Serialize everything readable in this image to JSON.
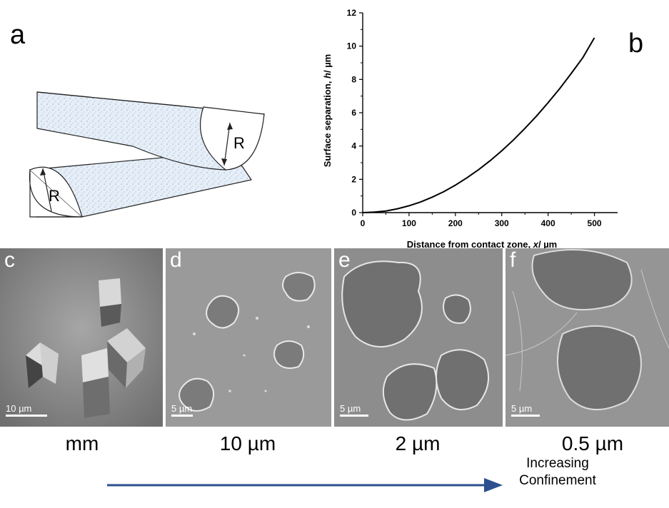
{
  "panels": {
    "a": {
      "label": "a",
      "radius_top": "R",
      "radius_bottom": "R"
    },
    "b": {
      "label": "b"
    },
    "c": {
      "label": "c",
      "scale_bar": "10 µm",
      "size_label": "mm"
    },
    "d": {
      "label": "d",
      "scale_bar": "5 µm",
      "size_label": "10 µm"
    },
    "e": {
      "label": "e",
      "scale_bar": "5 µm",
      "size_label": "2 µm"
    },
    "f": {
      "label": "f",
      "scale_bar": "5 µm",
      "size_label": "0.5 µm"
    }
  },
  "confinement": {
    "line1": "Increasing",
    "line2": "Confinement"
  },
  "colors": {
    "arrow": "#2d4f8e",
    "sem_bg": "#8f8f8f",
    "hatch": "#c9d9ea"
  },
  "chart_data": {
    "type": "line",
    "xlabel_prefix": "Distance from contact zone, ",
    "xlabel_var": "x",
    "xlabel_unit": "/ µm",
    "ylabel_prefix": "Surface separation, ",
    "ylabel_var": "h",
    "ylabel_unit": "/ µm",
    "xlim": [
      0,
      550
    ],
    "ylim": [
      0,
      12
    ],
    "xticks": [
      "0",
      "100",
      "200",
      "300",
      "400",
      "500"
    ],
    "yticks": [
      "0",
      "2",
      "4",
      "6",
      "8",
      "10",
      "12"
    ],
    "series": [
      {
        "x": [
          0,
          25,
          50,
          75,
          100,
          125,
          150,
          175,
          200,
          225,
          250,
          275,
          300,
          325,
          350,
          375,
          400,
          425,
          450,
          475,
          500
        ],
        "y": [
          0,
          0.03,
          0.1,
          0.23,
          0.41,
          0.64,
          0.93,
          1.26,
          1.65,
          2.09,
          2.58,
          3.12,
          3.71,
          4.36,
          5.06,
          5.8,
          6.6,
          7.45,
          8.36,
          9.31,
          10.5
        ]
      }
    ]
  }
}
